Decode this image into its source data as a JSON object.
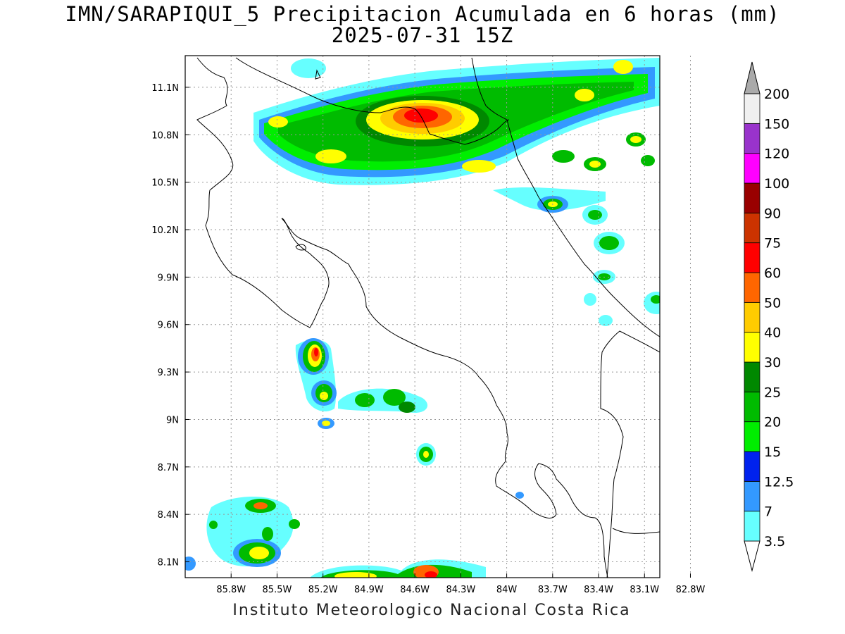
{
  "title": {
    "line1": "IMN/SARAPIQUI_5 Precipitacion Acumulada en 6 horas (mm)",
    "line2": "2025-07-31 15Z"
  },
  "credit": "Instituto Meteorologico Nacional Costa Rica",
  "map": {
    "lon_range": [
      -86.1,
      -83.0
    ],
    "lat_range": [
      8.0,
      11.3
    ],
    "lon_ticks": [
      "85.8W",
      "85.5W",
      "85.2W",
      "84.9W",
      "84.6W",
      "84.3W",
      "84W",
      "83.7W",
      "83.4W",
      "83.1W",
      "82.8W"
    ],
    "lat_ticks": [
      "8.1N",
      "8.4N",
      "8.7N",
      "9N",
      "9.3N",
      "9.6N",
      "9.9N",
      "10.2N",
      "10.5N",
      "10.8N",
      "11.1N"
    ],
    "gridlines": "dotted"
  },
  "colorbar": {
    "labels": [
      "3.5",
      "7",
      "12.5",
      "15",
      "20",
      "25",
      "30",
      "40",
      "50",
      "60",
      "75",
      "90",
      "100",
      "120",
      "150",
      "200"
    ],
    "colors": [
      "#66ffff",
      "#3399ff",
      "#0022ee",
      "#00ee00",
      "#00bb00",
      "#008800",
      "#ffff00",
      "#ffcc00",
      "#ff6600",
      "#ff0000",
      "#cc3300",
      "#990000",
      "#ff00ff",
      "#9933cc",
      "#f0f0f0",
      "#aaaaaa"
    ]
  }
}
